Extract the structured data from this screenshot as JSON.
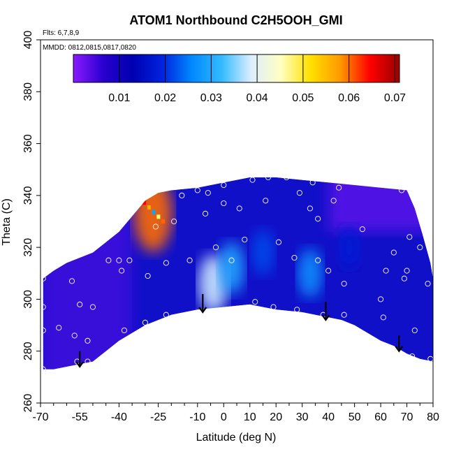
{
  "chart_data": {
    "type": "heatmap",
    "title": "ATOM1 Northbound C2H5OOH_GMI",
    "subtitle_flights": "Flts: 6,7,8,9",
    "subtitle_dates": "MMDD: 0812,0815,0817,0820",
    "xlabel": "Latitude (deg N)",
    "ylabel": "Theta (C)",
    "xlim": [
      -70,
      80
    ],
    "ylim": [
      260,
      400
    ],
    "x_ticks": [
      -70,
      -55,
      -40,
      -25,
      -10,
      0,
      10,
      20,
      30,
      40,
      50,
      60,
      70,
      80
    ],
    "x_tick_labels": [
      "-70",
      "-55",
      "-40",
      "-25",
      "-10",
      "0",
      "10",
      "20",
      "30",
      "40",
      "50",
      "60",
      "70",
      "80"
    ],
    "y_ticks": [
      260,
      280,
      300,
      320,
      340,
      360,
      380,
      400
    ],
    "y_tick_labels": [
      "260",
      "280",
      "300",
      "320",
      "340",
      "360",
      "380",
      "400"
    ],
    "colorbar": {
      "range": [
        0,
        0.071
      ],
      "ticks": [
        0.01,
        0.02,
        0.03,
        0.04,
        0.05,
        0.06,
        0.07
      ],
      "tick_labels": [
        "0.01",
        "0.02",
        "0.03",
        "0.04",
        "0.05",
        "0.06",
        "0.07"
      ],
      "colors": [
        "#8a1aff",
        "#2a00d0",
        "#0000b0",
        "#0022e0",
        "#0088ff",
        "#33bbff",
        "#ddeeff",
        "#ffffc0",
        "#ffe000",
        "#ff9900",
        "#ff0000",
        "#990000"
      ]
    },
    "field_description": "C2H5OOH mixing ratio interpolated over latitude-theta; mostly 0.005-0.015 with a 0.03-0.04 plume near -5 to 0 deg N at 300-310 C",
    "hotspots": [
      {
        "lat": -4,
        "theta": 306,
        "value": 0.038
      },
      {
        "lat": 3,
        "theta": 312,
        "value": 0.03
      },
      {
        "lat": 33,
        "theta": 310,
        "value": 0.027
      },
      {
        "lat": -27,
        "theta": 333,
        "value": 0.06
      },
      {
        "lat": 48,
        "theta": 320,
        "value": 0.018
      },
      {
        "lat": 15,
        "theta": 318,
        "value": 0.022
      }
    ],
    "upper_boundary": [
      [
        -69,
        308
      ],
      [
        -65,
        311
      ],
      [
        -60,
        314
      ],
      [
        -55,
        316
      ],
      [
        -50,
        318
      ],
      [
        -45,
        322
      ],
      [
        -40,
        326
      ],
      [
        -35,
        332
      ],
      [
        -30,
        338
      ],
      [
        -25,
        341
      ],
      [
        -20,
        342
      ],
      [
        -10,
        343
      ],
      [
        0,
        345
      ],
      [
        10,
        347
      ],
      [
        20,
        347
      ],
      [
        30,
        346
      ],
      [
        40,
        345
      ],
      [
        50,
        344
      ],
      [
        60,
        343
      ],
      [
        70,
        342
      ],
      [
        73,
        335
      ],
      [
        76,
        325
      ],
      [
        79,
        314
      ],
      [
        80,
        308
      ]
    ],
    "lower_boundary": [
      [
        80,
        276
      ],
      [
        75,
        277
      ],
      [
        70,
        279
      ],
      [
        65,
        282
      ],
      [
        60,
        284
      ],
      [
        55,
        287
      ],
      [
        50,
        290
      ],
      [
        45,
        292
      ],
      [
        40,
        293
      ],
      [
        35,
        294
      ],
      [
        30,
        295
      ],
      [
        20,
        296
      ],
      [
        10,
        298
      ],
      [
        0,
        297
      ],
      [
        -10,
        296
      ],
      [
        -20,
        294
      ],
      [
        -30,
        290
      ],
      [
        -35,
        287
      ],
      [
        -40,
        284
      ],
      [
        -45,
        280
      ],
      [
        -50,
        276
      ],
      [
        -55,
        275
      ],
      [
        -60,
        274
      ],
      [
        -65,
        273
      ],
      [
        -69,
        273
      ]
    ],
    "observations": [
      {
        "lat": -69,
        "theta": 308
      },
      {
        "lat": -69,
        "theta": 297
      },
      {
        "lat": -69,
        "theta": 288
      },
      {
        "lat": -69,
        "theta": 273
      },
      {
        "lat": -63,
        "theta": 289
      },
      {
        "lat": -58,
        "theta": 307
      },
      {
        "lat": -57,
        "theta": 286
      },
      {
        "lat": -56,
        "theta": 276
      },
      {
        "lat": -55,
        "theta": 298
      },
      {
        "lat": -52,
        "theta": 284
      },
      {
        "lat": -52,
        "theta": 276
      },
      {
        "lat": -50,
        "theta": 297
      },
      {
        "lat": -44,
        "theta": 315
      },
      {
        "lat": -40,
        "theta": 315
      },
      {
        "lat": -39,
        "theta": 311
      },
      {
        "lat": -38,
        "theta": 288
      },
      {
        "lat": -36,
        "theta": 315
      },
      {
        "lat": -30,
        "theta": 291
      },
      {
        "lat": -29,
        "theta": 309
      },
      {
        "lat": -26,
        "theta": 328
      },
      {
        "lat": -22,
        "theta": 314
      },
      {
        "lat": -22,
        "theta": 294
      },
      {
        "lat": -19,
        "theta": 330
      },
      {
        "lat": -16,
        "theta": 340
      },
      {
        "lat": -13,
        "theta": 315
      },
      {
        "lat": -10,
        "theta": 342
      },
      {
        "lat": -7,
        "theta": 333
      },
      {
        "lat": -6,
        "theta": 341
      },
      {
        "lat": -3,
        "theta": 320
      },
      {
        "lat": 0,
        "theta": 344
      },
      {
        "lat": 0,
        "theta": 337
      },
      {
        "lat": 3,
        "theta": 315
      },
      {
        "lat": 6,
        "theta": 335
      },
      {
        "lat": 8,
        "theta": 323
      },
      {
        "lat": 11,
        "theta": 346
      },
      {
        "lat": 12,
        "theta": 299
      },
      {
        "lat": 16,
        "theta": 338
      },
      {
        "lat": 17,
        "theta": 347
      },
      {
        "lat": 19,
        "theta": 297
      },
      {
        "lat": 21,
        "theta": 322
      },
      {
        "lat": 24,
        "theta": 347
      },
      {
        "lat": 27,
        "theta": 316
      },
      {
        "lat": 28,
        "theta": 296
      },
      {
        "lat": 29,
        "theta": 341
      },
      {
        "lat": 33,
        "theta": 335
      },
      {
        "lat": 34,
        "theta": 345
      },
      {
        "lat": 36,
        "theta": 331
      },
      {
        "lat": 36,
        "theta": 315
      },
      {
        "lat": 38,
        "theta": 294
      },
      {
        "lat": 40,
        "theta": 311
      },
      {
        "lat": 42,
        "theta": 338
      },
      {
        "lat": 44,
        "theta": 343
      },
      {
        "lat": 46,
        "theta": 306
      },
      {
        "lat": 46,
        "theta": 294
      },
      {
        "lat": 53,
        "theta": 327
      },
      {
        "lat": 60,
        "theta": 300
      },
      {
        "lat": 61,
        "theta": 293
      },
      {
        "lat": 62,
        "theta": 311
      },
      {
        "lat": 65,
        "theta": 318
      },
      {
        "lat": 68,
        "theta": 342
      },
      {
        "lat": 69,
        "theta": 308
      },
      {
        "lat": 70,
        "theta": 311
      },
      {
        "lat": 71,
        "theta": 324
      },
      {
        "lat": 72,
        "theta": 278
      },
      {
        "lat": 73,
        "theta": 288
      },
      {
        "lat": 75,
        "theta": 320
      },
      {
        "lat": 78,
        "theta": 306
      },
      {
        "lat": 79,
        "theta": 277
      }
    ],
    "arrows": [
      {
        "lat": -55,
        "theta_start": 280,
        "theta_end": 274
      },
      {
        "lat": -8,
        "theta_start": 302,
        "theta_end": 295
      },
      {
        "lat": 39,
        "theta_start": 299,
        "theta_end": 292
      },
      {
        "lat": 67,
        "theta_start": 286,
        "theta_end": 280
      }
    ]
  }
}
